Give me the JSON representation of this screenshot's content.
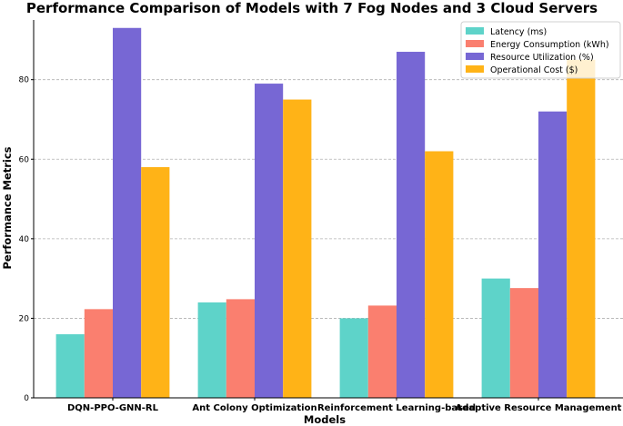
{
  "chart_data": {
    "type": "bar",
    "title": "Performance Comparison of Models with 7 Fog Nodes and 3 Cloud Servers",
    "xlabel": "Models",
    "ylabel": "Performance Metrics",
    "categories": [
      "DQN-PPO-GNN-RL",
      "Ant Colony Optimization",
      "Reinforcement Learning-based",
      "Adaptive Resource Management"
    ],
    "series": [
      {
        "name": "Latency (ms)",
        "color": "#5ed3c9",
        "values": [
          16,
          24,
          20,
          30
        ]
      },
      {
        "name": "Energy Consumption (kWh)",
        "color": "#fa7f6f",
        "values": [
          22.3,
          24.8,
          23.2,
          27.6
        ]
      },
      {
        "name": "Resource Utilization (%)",
        "color": "#7767d4",
        "values": [
          93,
          79,
          87,
          72
        ]
      },
      {
        "name": "Operational Cost ($)",
        "color": "#ffb317",
        "values": [
          58,
          75,
          62,
          85
        ]
      }
    ],
    "ylim": [
      0,
      95
    ],
    "yticks": [
      0,
      20,
      40,
      60,
      80
    ],
    "grid": "y-dashed",
    "legend": "top-right"
  }
}
